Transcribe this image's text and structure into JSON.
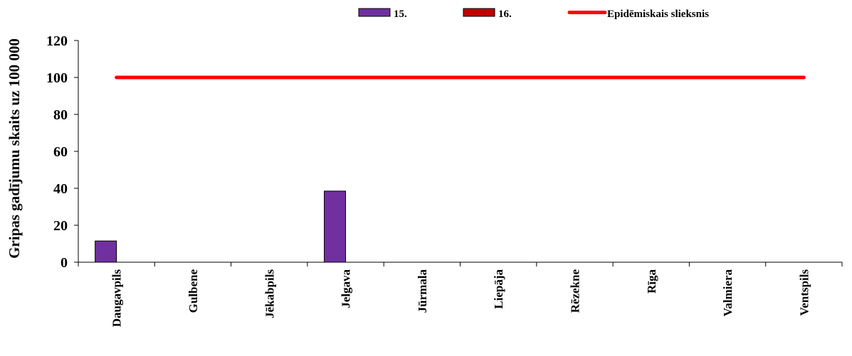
{
  "chart_data": {
    "type": "bar",
    "ylabel": "Gripas gadījumu skaits uz 100 000",
    "xlabel": "",
    "ylim": [
      0,
      120
    ],
    "yticks": [
      0,
      20,
      40,
      60,
      80,
      100,
      120
    ],
    "categories": [
      "Daugavpils",
      "Gulbene",
      "Jēkabpils",
      "Jelgava",
      "Jūrmala",
      "Liepāja",
      "Rēzekne",
      "Rīga",
      "Valmiera",
      "Ventspils"
    ],
    "series": [
      {
        "name": "15.",
        "color": "#7030a0",
        "values": [
          11.5,
          0,
          0,
          38.5,
          0,
          0,
          0,
          0,
          0,
          0
        ]
      },
      {
        "name": "16.",
        "color": "#c00000",
        "values": [
          0,
          0,
          0,
          0,
          0,
          0,
          0,
          0,
          0,
          0
        ]
      }
    ],
    "threshold": {
      "name": "Epidēmiskais slieksnis",
      "value": 100,
      "color": "#ff0000"
    },
    "legend_position": "top",
    "grid": false
  }
}
